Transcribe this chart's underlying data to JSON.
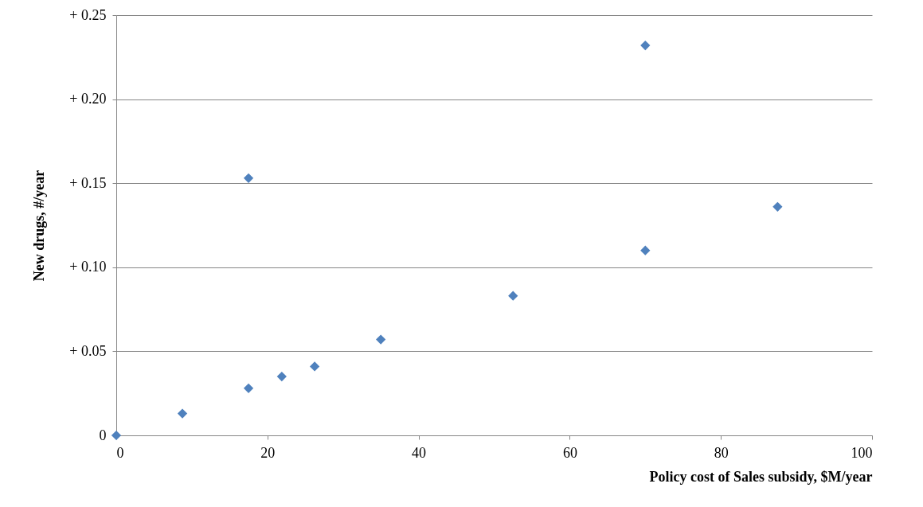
{
  "chart_data": {
    "type": "scatter",
    "xlabel": "Policy cost of Sales subsidy, $M/year",
    "ylabel": "New drugs, #/year",
    "x": [
      0,
      8.75,
      17.5,
      17.5,
      21.9,
      26.25,
      35,
      52.5,
      70,
      70,
      87.5
    ],
    "values": [
      0,
      0.013,
      0.028,
      0.153,
      0.035,
      0.041,
      0.057,
      0.083,
      0.11,
      0.232,
      0.136
    ],
    "color": "#4f81bd",
    "marker": "diamond",
    "grid": "y",
    "legend": false,
    "xlim": [
      0,
      100
    ],
    "xticks": [
      0,
      20,
      40,
      60,
      80,
      100
    ],
    "ylim": [
      0,
      0.25
    ],
    "yticks": [
      0,
      {
        "value": 0.05,
        "label": "+ 0.05"
      },
      {
        "value": 0.1,
        "label": "+ 0.10"
      },
      {
        "value": 0.15,
        "label": "+ 0.15"
      },
      {
        "value": 0.2,
        "label": "+ 0.20"
      },
      {
        "value": 0.25,
        "label": "+ 0.25"
      }
    ]
  }
}
